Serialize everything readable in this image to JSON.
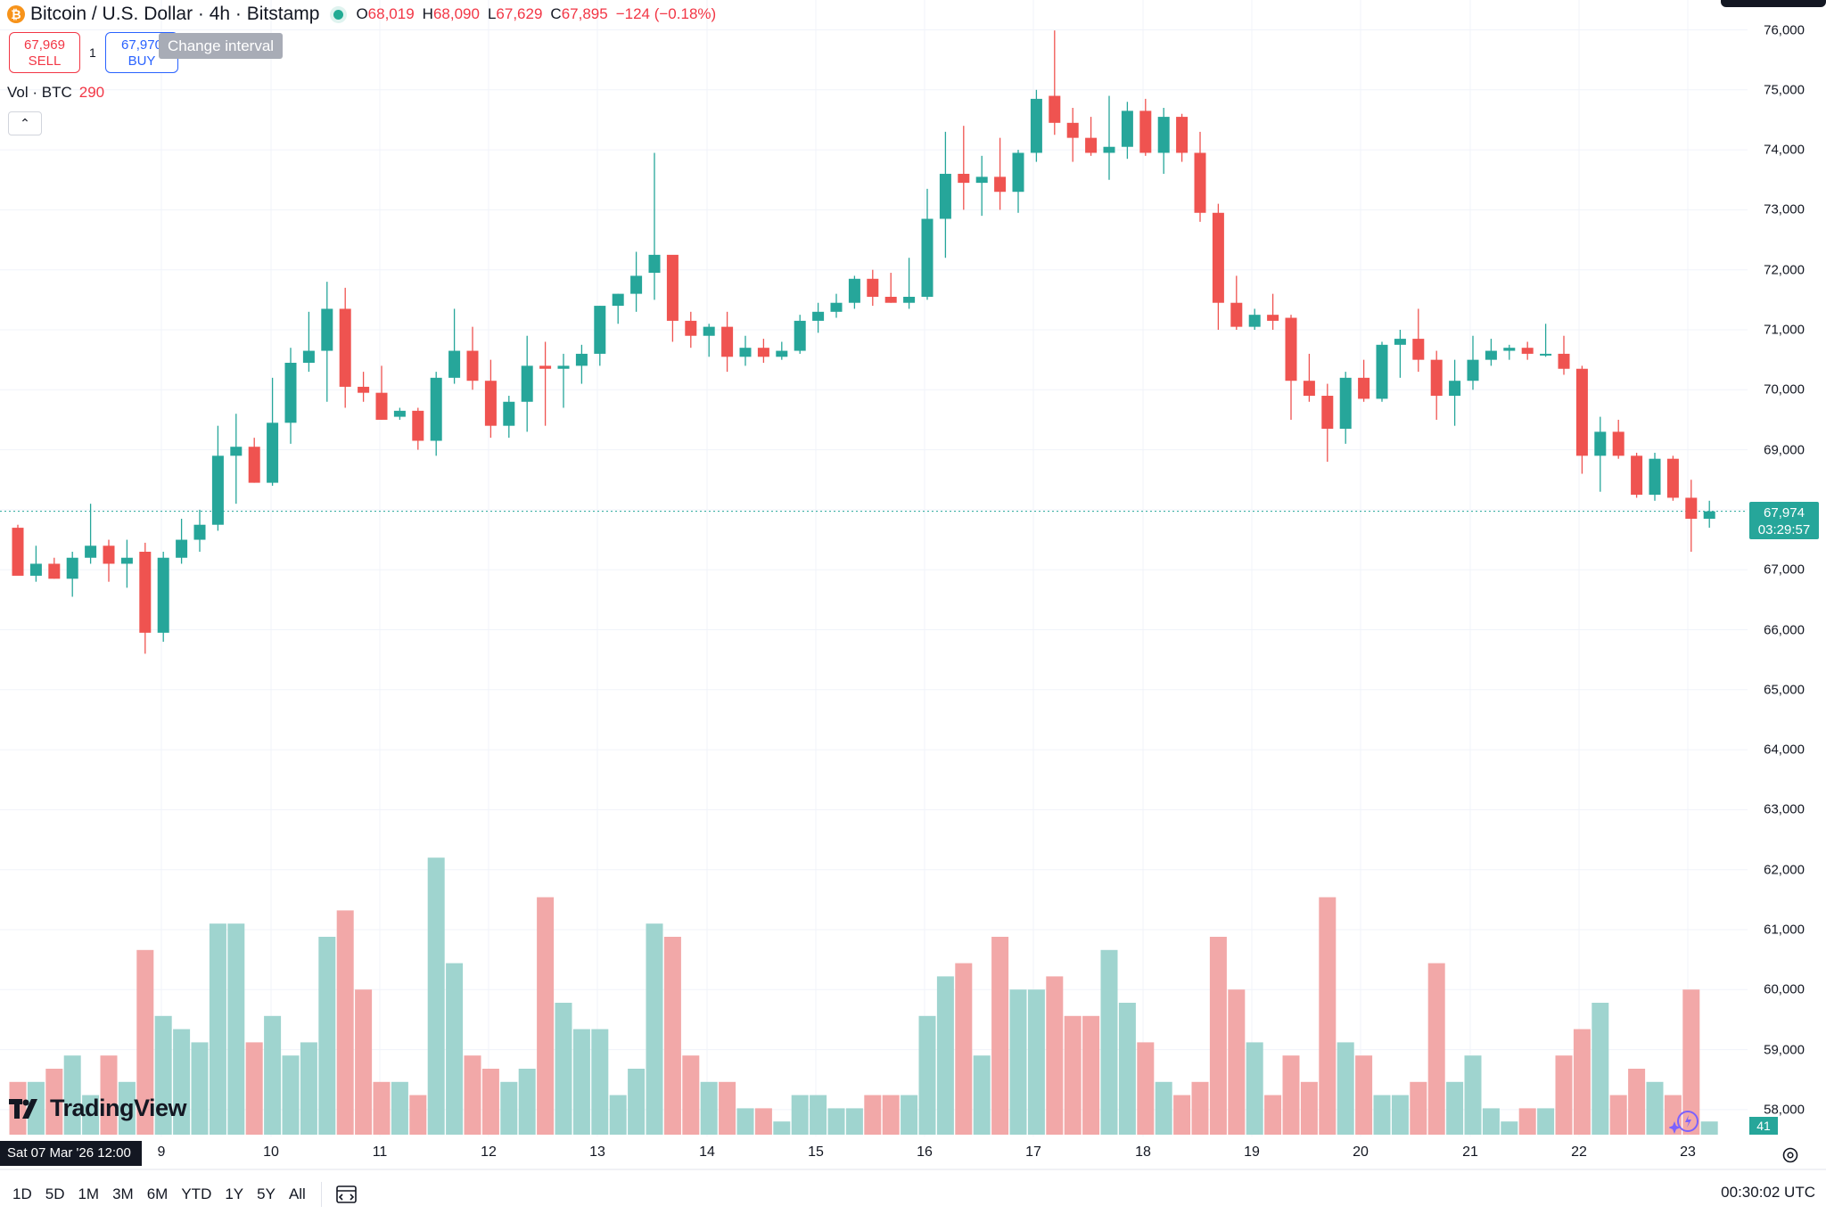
{
  "header": {
    "symbol_title": "Bitcoin / U.S. Dollar · 4h · Bitstamp",
    "coin_glyph": "₿",
    "ohlc": [
      {
        "key": "O",
        "value": "68,019"
      },
      {
        "key": "H",
        "value": "68,090"
      },
      {
        "key": "L",
        "value": "67,629"
      },
      {
        "key": "C",
        "value": "67,895"
      }
    ],
    "change": "−124 (−0.18%)"
  },
  "trade": {
    "sell_price": "67,969",
    "sell_label": "SELL",
    "spread": "1",
    "buy_price": "67,970",
    "buy_label": "BUY",
    "tooltip": "Change interval"
  },
  "volume_legend": {
    "label": "Vol · BTC",
    "value": "290"
  },
  "collapse_glyph": "⌃",
  "price_axis": {
    "ticks": [
      "76,000",
      "75,000",
      "74,000",
      "73,000",
      "72,000",
      "71,000",
      "70,000",
      "69,000",
      "67,000",
      "66,000",
      "65,000",
      "64,000",
      "63,000",
      "62,000",
      "61,000",
      "60,000",
      "59,000",
      "58,000"
    ],
    "current_price": "67,974",
    "countdown": "03:29:57",
    "volume_tag": "41"
  },
  "time_axis": {
    "ticks": [
      "9",
      "10",
      "11",
      "12",
      "13",
      "14",
      "15",
      "16",
      "17",
      "18",
      "19",
      "20",
      "21",
      "22",
      "23"
    ],
    "cursor_label": "Sat 07 Mar '26   12:00"
  },
  "bottom_bar": {
    "ranges": [
      "1D",
      "5D",
      "1M",
      "3M",
      "6M",
      "YTD",
      "1Y",
      "5Y",
      "All"
    ],
    "clock": "00:30:02 UTC"
  },
  "logo_text": "TradingView",
  "colors": {
    "up": "#26a69a",
    "down": "#ef5350",
    "up_volume": "#9fd4cf",
    "down_volume": "#f2a8a8"
  },
  "chart_data": {
    "type": "candlestick",
    "interval": "4h",
    "ylim": [
      57000,
      76500
    ],
    "candles": [
      {
        "o": 67700,
        "h": 67750,
        "l": 66950,
        "c": 66900,
        "v": 4
      },
      {
        "o": 66900,
        "h": 67400,
        "l": 66800,
        "c": 67100,
        "v": 4
      },
      {
        "o": 67100,
        "h": 67200,
        "l": 66850,
        "c": 66850,
        "v": 5
      },
      {
        "o": 66850,
        "h": 67300,
        "l": 66550,
        "c": 67200,
        "v": 6
      },
      {
        "o": 67200,
        "h": 68100,
        "l": 67100,
        "c": 67400,
        "v": 3
      },
      {
        "o": 67400,
        "h": 67500,
        "l": 66800,
        "c": 67100,
        "v": 6
      },
      {
        "o": 67100,
        "h": 67500,
        "l": 66700,
        "c": 67200,
        "v": 4
      },
      {
        "o": 67300,
        "h": 67450,
        "l": 65600,
        "c": 65950,
        "v": 14
      },
      {
        "o": 65950,
        "h": 67300,
        "l": 65800,
        "c": 67200,
        "v": 9
      },
      {
        "o": 67200,
        "h": 67850,
        "l": 67100,
        "c": 67500,
        "v": 8
      },
      {
        "o": 67500,
        "h": 68000,
        "l": 67300,
        "c": 67750,
        "v": 7
      },
      {
        "o": 67750,
        "h": 69400,
        "l": 67650,
        "c": 68900,
        "v": 16
      },
      {
        "o": 68900,
        "h": 69600,
        "l": 68100,
        "c": 69050,
        "v": 16
      },
      {
        "o": 69050,
        "h": 69200,
        "l": 68450,
        "c": 68450,
        "v": 7
      },
      {
        "o": 68450,
        "h": 70200,
        "l": 68400,
        "c": 69450,
        "v": 9
      },
      {
        "o": 69450,
        "h": 70700,
        "l": 69100,
        "c": 70450,
        "v": 6
      },
      {
        "o": 70450,
        "h": 71300,
        "l": 70300,
        "c": 70650,
        "v": 7
      },
      {
        "o": 70650,
        "h": 71800,
        "l": 69800,
        "c": 71350,
        "v": 15
      },
      {
        "o": 71350,
        "h": 71700,
        "l": 69700,
        "c": 70050,
        "v": 17
      },
      {
        "o": 70050,
        "h": 70300,
        "l": 69800,
        "c": 69950,
        "v": 11
      },
      {
        "o": 69950,
        "h": 70400,
        "l": 69500,
        "c": 69500,
        "v": 4
      },
      {
        "o": 69550,
        "h": 69700,
        "l": 69500,
        "c": 69650,
        "v": 4
      },
      {
        "o": 69650,
        "h": 69700,
        "l": 69000,
        "c": 69150,
        "v": 3
      },
      {
        "o": 69150,
        "h": 70300,
        "l": 68900,
        "c": 70200,
        "v": 21
      },
      {
        "o": 70200,
        "h": 71350,
        "l": 70100,
        "c": 70650,
        "v": 13
      },
      {
        "o": 70650,
        "h": 71050,
        "l": 70000,
        "c": 70150,
        "v": 6
      },
      {
        "o": 70150,
        "h": 70500,
        "l": 69200,
        "c": 69400,
        "v": 5
      },
      {
        "o": 69400,
        "h": 69900,
        "l": 69200,
        "c": 69800,
        "v": 4
      },
      {
        "o": 69800,
        "h": 70900,
        "l": 69300,
        "c": 70400,
        "v": 5
      },
      {
        "o": 70400,
        "h": 70800,
        "l": 69400,
        "c": 70350,
        "v": 18
      },
      {
        "o": 70350,
        "h": 70600,
        "l": 69700,
        "c": 70400,
        "v": 10
      },
      {
        "o": 70400,
        "h": 70750,
        "l": 70100,
        "c": 70600,
        "v": 8
      },
      {
        "o": 70600,
        "h": 71400,
        "l": 70400,
        "c": 71400,
        "v": 8
      },
      {
        "o": 71400,
        "h": 71600,
        "l": 71100,
        "c": 71600,
        "v": 3
      },
      {
        "o": 71600,
        "h": 72300,
        "l": 71300,
        "c": 71900,
        "v": 5
      },
      {
        "o": 71950,
        "h": 73950,
        "l": 71500,
        "c": 72250,
        "v": 16
      },
      {
        "o": 72250,
        "h": 72200,
        "l": 70800,
        "c": 71150,
        "v": 15
      },
      {
        "o": 71150,
        "h": 71300,
        "l": 70700,
        "c": 70900,
        "v": 6
      },
      {
        "o": 70900,
        "h": 71100,
        "l": 70550,
        "c": 71050,
        "v": 4
      },
      {
        "o": 71050,
        "h": 71300,
        "l": 70300,
        "c": 70550,
        "v": 4
      },
      {
        "o": 70550,
        "h": 70900,
        "l": 70400,
        "c": 70700,
        "v": 2
      },
      {
        "o": 70700,
        "h": 70850,
        "l": 70450,
        "c": 70550,
        "v": 2
      },
      {
        "o": 70550,
        "h": 70800,
        "l": 70500,
        "c": 70650,
        "v": 1
      },
      {
        "o": 70650,
        "h": 71250,
        "l": 70600,
        "c": 71150,
        "v": 3
      },
      {
        "o": 71150,
        "h": 71450,
        "l": 70950,
        "c": 71300,
        "v": 3
      },
      {
        "o": 71300,
        "h": 71600,
        "l": 71200,
        "c": 71450,
        "v": 2
      },
      {
        "o": 71450,
        "h": 71900,
        "l": 71350,
        "c": 71850,
        "v": 2
      },
      {
        "o": 71850,
        "h": 72000,
        "l": 71400,
        "c": 71550,
        "v": 3
      },
      {
        "o": 71550,
        "h": 71950,
        "l": 71450,
        "c": 71450,
        "v": 3
      },
      {
        "o": 71450,
        "h": 72200,
        "l": 71350,
        "c": 71550,
        "v": 3
      },
      {
        "o": 71550,
        "h": 73350,
        "l": 71500,
        "c": 72850,
        "v": 9
      },
      {
        "o": 72850,
        "h": 74300,
        "l": 72200,
        "c": 73600,
        "v": 12
      },
      {
        "o": 73600,
        "h": 74400,
        "l": 73000,
        "c": 73450,
        "v": 13
      },
      {
        "o": 73450,
        "h": 73900,
        "l": 72900,
        "c": 73550,
        "v": 6
      },
      {
        "o": 73550,
        "h": 74200,
        "l": 73000,
        "c": 73300,
        "v": 15
      },
      {
        "o": 73300,
        "h": 74000,
        "l": 72950,
        "c": 73950,
        "v": 11
      },
      {
        "o": 73950,
        "h": 75000,
        "l": 73800,
        "c": 74850,
        "v": 11
      },
      {
        "o": 74900,
        "h": 75990,
        "l": 74250,
        "c": 74450,
        "v": 12
      },
      {
        "o": 74450,
        "h": 74700,
        "l": 73800,
        "c": 74200,
        "v": 9
      },
      {
        "o": 74200,
        "h": 74550,
        "l": 73900,
        "c": 73950,
        "v": 9
      },
      {
        "o": 73950,
        "h": 74900,
        "l": 73500,
        "c": 74050,
        "v": 14
      },
      {
        "o": 74050,
        "h": 74800,
        "l": 73850,
        "c": 74650,
        "v": 10
      },
      {
        "o": 74650,
        "h": 74850,
        "l": 73900,
        "c": 73950,
        "v": 7
      },
      {
        "o": 73950,
        "h": 74700,
        "l": 73600,
        "c": 74550,
        "v": 4
      },
      {
        "o": 74550,
        "h": 74600,
        "l": 73800,
        "c": 73950,
        "v": 3
      },
      {
        "o": 73950,
        "h": 74300,
        "l": 72800,
        "c": 72950,
        "v": 4
      },
      {
        "o": 72950,
        "h": 73100,
        "l": 71000,
        "c": 71450,
        "v": 15
      },
      {
        "o": 71450,
        "h": 71900,
        "l": 71000,
        "c": 71050,
        "v": 11
      },
      {
        "o": 71050,
        "h": 71350,
        "l": 71000,
        "c": 71250,
        "v": 7
      },
      {
        "o": 71250,
        "h": 71600,
        "l": 71000,
        "c": 71150,
        "v": 3
      },
      {
        "o": 71200,
        "h": 71250,
        "l": 69500,
        "c": 70150,
        "v": 6
      },
      {
        "o": 70150,
        "h": 70600,
        "l": 69800,
        "c": 69900,
        "v": 4
      },
      {
        "o": 69900,
        "h": 70100,
        "l": 68800,
        "c": 69350,
        "v": 18
      },
      {
        "o": 69350,
        "h": 70300,
        "l": 69100,
        "c": 70200,
        "v": 7
      },
      {
        "o": 70200,
        "h": 70500,
        "l": 69800,
        "c": 69850,
        "v": 6
      },
      {
        "o": 69850,
        "h": 70800,
        "l": 69800,
        "c": 70750,
        "v": 3
      },
      {
        "o": 70750,
        "h": 71000,
        "l": 70200,
        "c": 70850,
        "v": 3
      },
      {
        "o": 70850,
        "h": 71350,
        "l": 70300,
        "c": 70500,
        "v": 4
      },
      {
        "o": 70500,
        "h": 70650,
        "l": 69500,
        "c": 69900,
        "v": 13
      },
      {
        "o": 69900,
        "h": 70500,
        "l": 69400,
        "c": 70150,
        "v": 4
      },
      {
        "o": 70150,
        "h": 70900,
        "l": 70000,
        "c": 70500,
        "v": 6
      },
      {
        "o": 70500,
        "h": 70850,
        "l": 70400,
        "c": 70650,
        "v": 2
      },
      {
        "o": 70650,
        "h": 70750,
        "l": 70500,
        "c": 70700,
        "v": 1
      },
      {
        "o": 70700,
        "h": 70800,
        "l": 70500,
        "c": 70600,
        "v": 2
      },
      {
        "o": 70600,
        "h": 71100,
        "l": 70550,
        "c": 70600,
        "v": 2
      },
      {
        "o": 70600,
        "h": 70900,
        "l": 70250,
        "c": 70350,
        "v": 6
      },
      {
        "o": 70350,
        "h": 70400,
        "l": 68600,
        "c": 68900,
        "v": 8
      },
      {
        "o": 68900,
        "h": 69550,
        "l": 68300,
        "c": 69300,
        "v": 10
      },
      {
        "o": 69300,
        "h": 69500,
        "l": 68850,
        "c": 68900,
        "v": 3
      },
      {
        "o": 68900,
        "h": 68950,
        "l": 68200,
        "c": 68250,
        "v": 5
      },
      {
        "o": 68250,
        "h": 68950,
        "l": 68150,
        "c": 68850,
        "v": 4
      },
      {
        "o": 68850,
        "h": 68900,
        "l": 68150,
        "c": 68200,
        "v": 3
      },
      {
        "o": 68200,
        "h": 68500,
        "l": 67300,
        "c": 67850,
        "v": 11
      },
      {
        "o": 67850,
        "h": 68150,
        "l": 67700,
        "c": 67974,
        "v": 1
      }
    ]
  }
}
